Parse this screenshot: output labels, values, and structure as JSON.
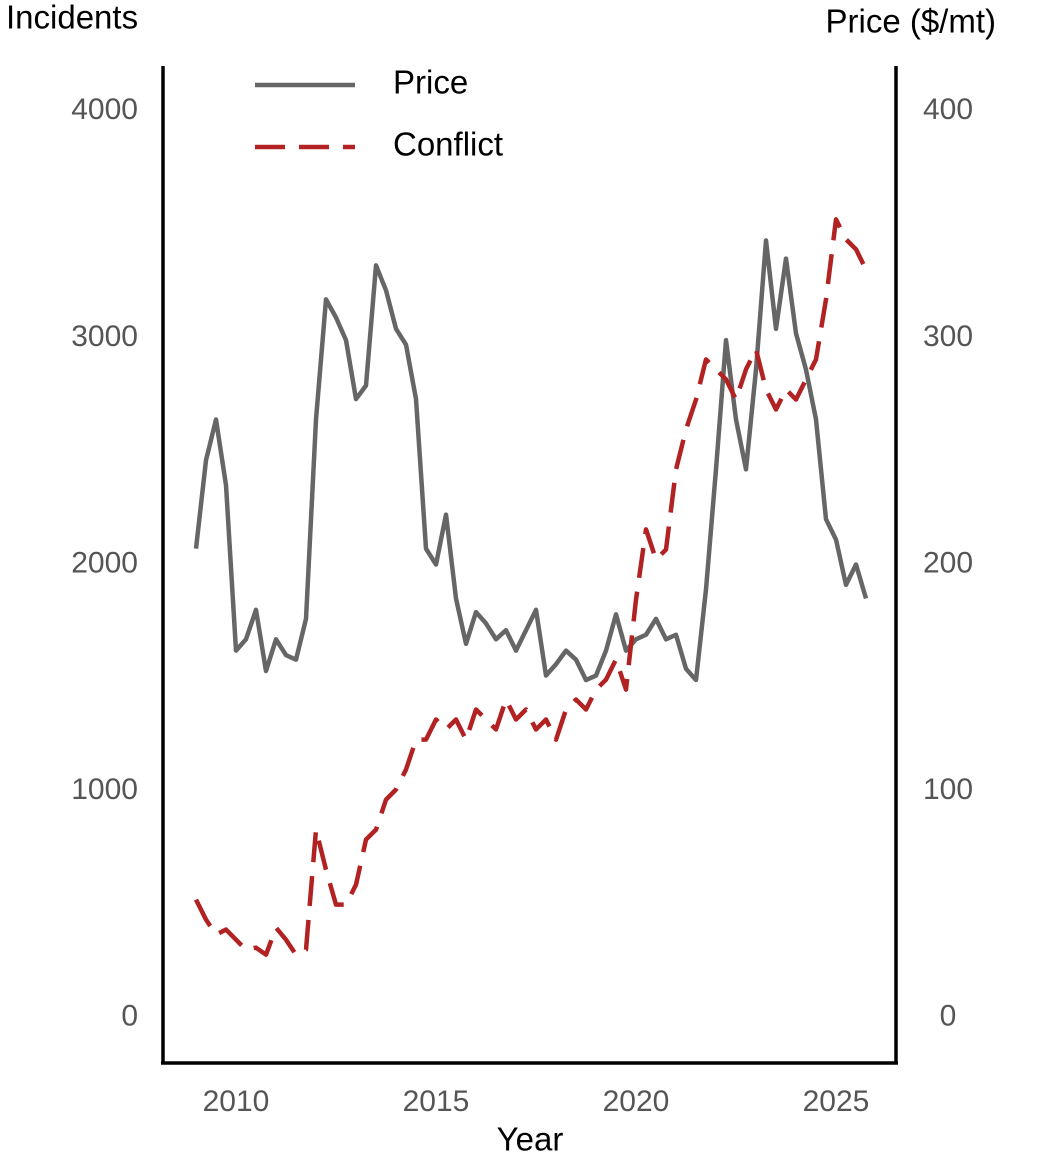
{
  "chart_data": {
    "type": "line",
    "xlabel": "Year",
    "ylabel": "Incidents",
    "y2label": "Price ($/mt)",
    "x": [
      2009,
      2009.25,
      2009.5,
      2009.75,
      2010,
      2010.25,
      2010.5,
      2010.75,
      2011,
      2011.25,
      2011.5,
      2011.75,
      2012,
      2012.25,
      2012.5,
      2012.75,
      2013,
      2013.25,
      2013.5,
      2013.75,
      2014,
      2014.25,
      2014.5,
      2014.75,
      2015,
      2015.25,
      2015.5,
      2015.75,
      2016,
      2016.25,
      2016.5,
      2016.75,
      2017,
      2017.25,
      2017.5,
      2017.75,
      2018,
      2018.25,
      2018.5,
      2018.75,
      2019,
      2019.25,
      2019.5,
      2019.75,
      2020,
      2020.25,
      2020.5,
      2020.75,
      2021,
      2021.25,
      2021.5,
      2021.75,
      2022,
      2022.25,
      2022.5,
      2022.75,
      2023,
      2023.25,
      2023.5,
      2023.75,
      2024,
      2024.25,
      2024.5,
      2024.75,
      2025,
      2025.25,
      2025.5,
      2025.75
    ],
    "series": [
      {
        "name": "Price",
        "color": "#666666",
        "dash": false,
        "axis": "y2",
        "values": [
          207,
          246,
          264,
          235,
          162,
          167,
          180,
          153,
          167,
          160,
          158,
          176,
          264,
          317,
          309,
          299,
          273,
          279,
          332,
          321,
          304,
          297,
          273,
          207,
          200,
          222,
          185,
          165,
          179,
          174,
          167,
          171,
          162,
          171,
          180,
          151,
          156,
          162,
          158,
          149,
          151,
          162,
          178,
          162,
          167,
          169,
          176,
          167,
          169,
          154,
          149,
          189,
          242,
          299,
          264,
          242,
          286,
          343,
          304,
          335,
          302,
          286,
          264,
          220,
          211,
          191,
          200,
          185
        ]
      },
      {
        "name": "Conflict",
        "color": "#b22222",
        "dash": true,
        "values": [
          521,
          433,
          366,
          389,
          344,
          300,
          309,
          278,
          397,
          344,
          278,
          300,
          830,
          653,
          499,
          499,
          587,
          786,
          830,
          962,
          1007,
          1095,
          1227,
          1227,
          1316,
          1272,
          1316,
          1227,
          1360,
          1316,
          1272,
          1404,
          1316,
          1360,
          1272,
          1316,
          1227,
          1360,
          1404,
          1360,
          1448,
          1492,
          1581,
          1448,
          1845,
          2155,
          2022,
          2066,
          2419,
          2596,
          2728,
          2905,
          2861,
          2817,
          2728,
          2861,
          2949,
          2773,
          2684,
          2773,
          2728,
          2817,
          2905,
          3170,
          3523,
          3435,
          3391,
          3302
        ]
      }
    ],
    "xlim": [
      2008.175,
      2026.5
    ],
    "xticks": [
      2010,
      2015,
      2020,
      2025
    ],
    "ylim": [
      -200,
      4200
    ],
    "yticks": [
      0,
      1000,
      2000,
      3000,
      4000
    ],
    "y2lim": [
      -20,
      420
    ],
    "y2ticks": [
      0,
      100,
      200,
      300,
      400
    ],
    "legend": "upper left",
    "grid": false
  }
}
